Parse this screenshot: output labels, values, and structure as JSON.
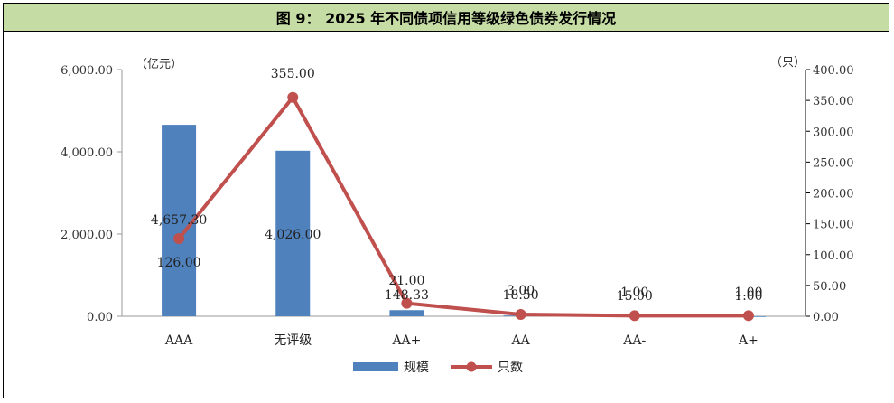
{
  "title": "图 9： 2025 年不同债项信用等级绿色债券发行情况",
  "chart_data": {
    "type": "bar+line",
    "categories": [
      "AAA",
      "无评级",
      "AA+",
      "AA",
      "AA-",
      "A+"
    ],
    "series": [
      {
        "name": "规模",
        "type": "bar",
        "axis": "left",
        "color": "#4f81bd",
        "values": [
          4657.3,
          4026.0,
          148.33,
          18.5,
          15.0,
          1.0
        ],
        "labels": [
          "4,657.30",
          "4,026.00",
          "148.33",
          "18.50",
          "15.00",
          "1.00"
        ]
      },
      {
        "name": "只数",
        "type": "line",
        "axis": "right",
        "color": "#c0504d",
        "values": [
          126,
          355,
          21,
          3,
          1,
          1
        ],
        "labels": [
          "126.00",
          "355.00",
          "21.00",
          "3.00",
          "1.00",
          "1.00"
        ]
      }
    ],
    "y_left": {
      "unit": "（亿元）",
      "ylim": [
        0,
        6000
      ],
      "ticks": [
        "0.00",
        "2,000.00",
        "4,000.00",
        "6,000.00"
      ]
    },
    "y_right": {
      "unit": "（只）",
      "ylim": [
        0,
        400
      ],
      "ticks": [
        "0.00",
        "50.00",
        "100.00",
        "150.00",
        "200.00",
        "250.00",
        "300.00",
        "350.00",
        "400.00"
      ]
    },
    "legend_position": "bottom",
    "grid": false
  }
}
